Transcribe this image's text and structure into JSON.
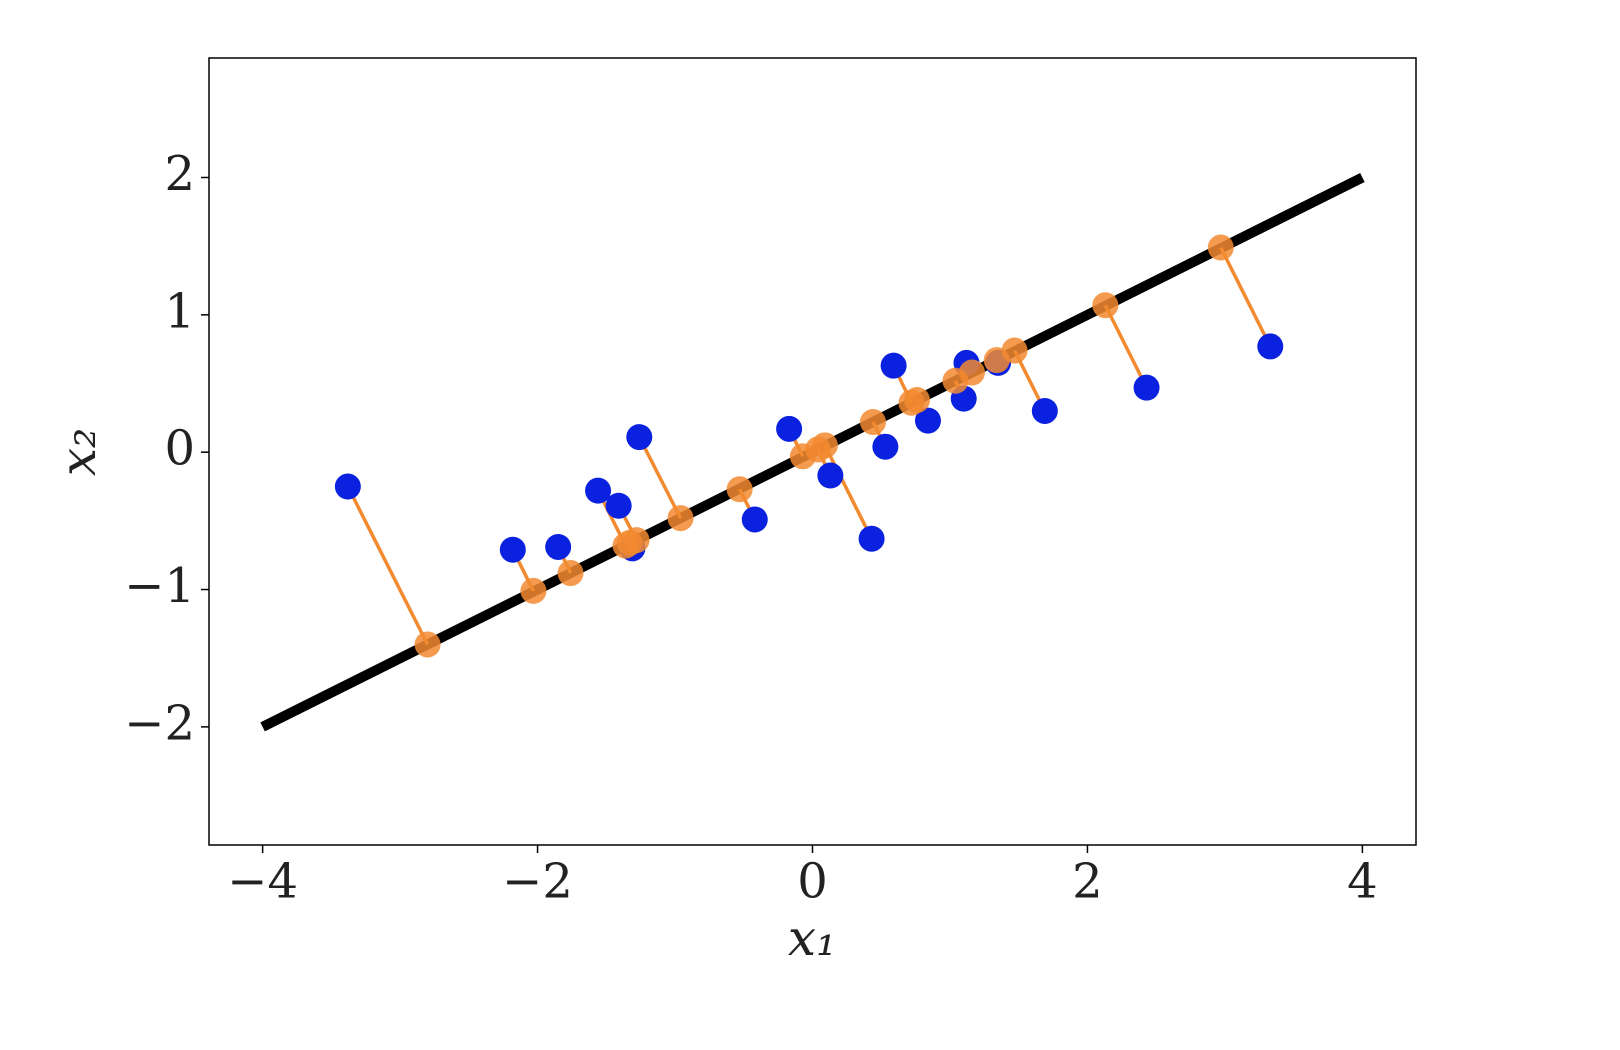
{
  "chart_data": {
    "type": "scatter",
    "xlabel": "x₁",
    "ylabel": "x₂",
    "xlim": [
      -4.39,
      4.39
    ],
    "ylim": [
      -2.86,
      2.87
    ],
    "xticks": [
      {
        "value": -4,
        "label": "−4"
      },
      {
        "value": -2,
        "label": "−2"
      },
      0,
      2,
      4
    ],
    "yticks": [
      {
        "value": -2,
        "label": "−2"
      },
      {
        "value": -1,
        "label": "−1"
      },
      0,
      1,
      2
    ],
    "line": {
      "x": [
        -4,
        4
      ],
      "y": [
        -2,
        2
      ],
      "color": "#000000"
    },
    "points": {
      "color": "#0a22e0",
      "x": [
        -3.38,
        -2.18,
        -1.85,
        -1.56,
        -1.41,
        -1.31,
        -1.26,
        -0.42,
        -0.17,
        0.13,
        0.43,
        0.53,
        0.59,
        0.84,
        1.1,
        1.12,
        1.35,
        1.69,
        2.43,
        3.33
      ],
      "y": [
        -0.25,
        -0.71,
        -0.69,
        -0.28,
        -0.39,
        -0.7,
        0.11,
        -0.49,
        0.17,
        -0.17,
        -0.63,
        0.04,
        0.63,
        0.23,
        0.39,
        0.65,
        0.65,
        0.3,
        0.47,
        0.77
      ]
    },
    "projections": {
      "color": "#f28a30",
      "x": [
        -2.8,
        -2.03,
        -1.76,
        -1.36,
        -1.28,
        -1.33,
        -0.96,
        -0.53,
        -0.07,
        0.04,
        0.09,
        0.44,
        0.72,
        0.76,
        1.04,
        1.16,
        1.34,
        1.47,
        2.13,
        2.97
      ],
      "y": [
        -1.4,
        -1.01,
        -0.88,
        -0.68,
        -0.64,
        -0.66,
        -0.48,
        -0.27,
        -0.03,
        0.02,
        0.05,
        0.22,
        0.36,
        0.38,
        0.52,
        0.58,
        0.67,
        0.74,
        1.07,
        1.49
      ]
    }
  }
}
